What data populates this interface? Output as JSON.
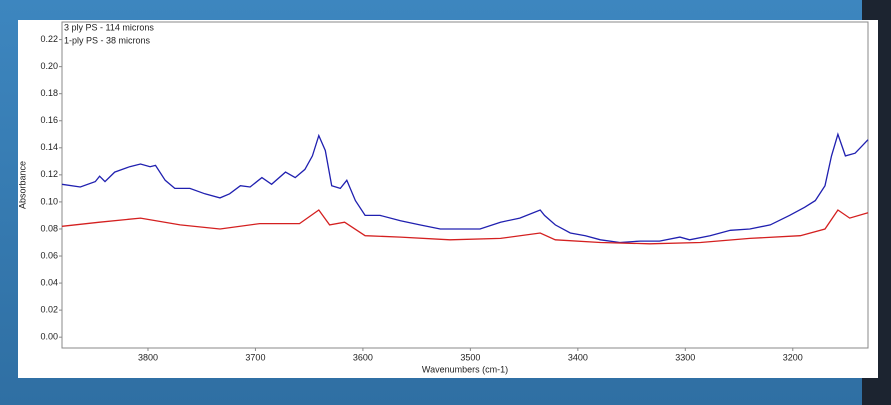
{
  "chart_data": {
    "type": "line",
    "x_label": "Wavenumbers (cm-1)",
    "y_label": "Absorbance",
    "xlim": [
      3880,
      3130
    ],
    "ylim": [
      -0.008,
      0.233
    ],
    "xticks": [
      3800,
      3700,
      3600,
      3500,
      3400,
      3300,
      3200
    ],
    "yticks": [
      {
        "value": 0,
        "label": "0.00"
      },
      {
        "value": 0.02,
        "label": "0.02"
      },
      {
        "value": 0.04,
        "label": "0.04"
      },
      {
        "value": 0.06,
        "label": "0.06"
      },
      {
        "value": 0.08,
        "label": "0.08"
      },
      {
        "value": 0.1,
        "label": "0.10"
      },
      {
        "value": 0.12,
        "label": "0.12"
      },
      {
        "value": 0.14,
        "label": "0.14"
      },
      {
        "value": 0.16,
        "label": "0.16"
      },
      {
        "value": 0.18,
        "label": "0.18"
      },
      {
        "value": 0.2,
        "label": "0.20"
      },
      {
        "value": 0.22,
        "label": "0.22"
      }
    ],
    "grid": false,
    "series": [
      {
        "name": "3 ply PS - 114 microns",
        "color": "#2020b0",
        "x": [
          3880,
          3863,
          3849,
          3845,
          3840,
          3831,
          3817,
          3807,
          3798,
          3793,
          3784,
          3775,
          3761,
          3747,
          3733,
          3724,
          3714,
          3705,
          3694,
          3685,
          3672,
          3663,
          3654,
          3647,
          3641,
          3635,
          3629,
          3621,
          3615,
          3607,
          3598,
          3584,
          3565,
          3547,
          3528,
          3510,
          3491,
          3472,
          3454,
          3435,
          3431,
          3421,
          3407,
          3393,
          3379,
          3361,
          3342,
          3324,
          3305,
          3296,
          3277,
          3258,
          3240,
          3221,
          3203,
          3189,
          3179,
          3170,
          3164,
          3158,
          3151,
          3142,
          3136,
          3130
        ],
        "values": [
          0.113,
          0.111,
          0.115,
          0.119,
          0.115,
          0.122,
          0.126,
          0.128,
          0.126,
          0.127,
          0.116,
          0.11,
          0.11,
          0.106,
          0.103,
          0.106,
          0.112,
          0.111,
          0.118,
          0.113,
          0.122,
          0.118,
          0.124,
          0.134,
          0.149,
          0.138,
          0.112,
          0.11,
          0.116,
          0.101,
          0.09,
          0.09,
          0.086,
          0.083,
          0.08,
          0.08,
          0.08,
          0.085,
          0.088,
          0.094,
          0.09,
          0.083,
          0.077,
          0.075,
          0.072,
          0.07,
          0.071,
          0.071,
          0.074,
          0.072,
          0.075,
          0.079,
          0.08,
          0.083,
          0.09,
          0.096,
          0.101,
          0.112,
          0.134,
          0.15,
          0.134,
          0.136,
          0.141,
          0.146
        ]
      },
      {
        "name": "1-ply PS - 38 microns",
        "color": "#d42020",
        "x": [
          3880,
          3845,
          3807,
          3770,
          3733,
          3696,
          3659,
          3641,
          3631,
          3617,
          3598,
          3565,
          3519,
          3472,
          3435,
          3421,
          3379,
          3333,
          3286,
          3240,
          3193,
          3170,
          3158,
          3147,
          3130
        ],
        "values": [
          0.082,
          0.085,
          0.088,
          0.083,
          0.08,
          0.084,
          0.084,
          0.094,
          0.083,
          0.085,
          0.075,
          0.074,
          0.072,
          0.073,
          0.077,
          0.072,
          0.07,
          0.069,
          0.07,
          0.073,
          0.075,
          0.08,
          0.094,
          0.088,
          0.092
        ]
      }
    ]
  }
}
